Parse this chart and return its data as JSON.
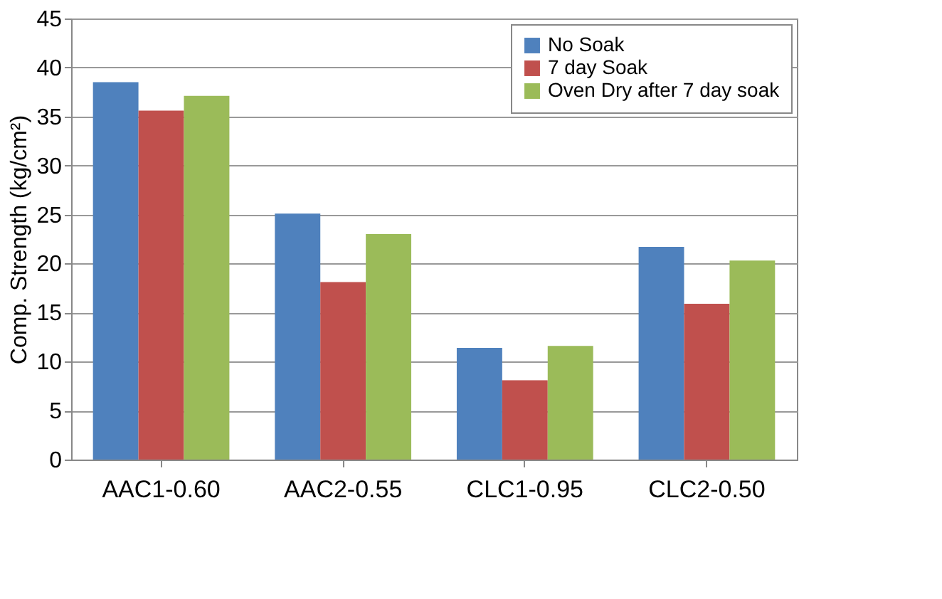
{
  "chart_data": {
    "type": "bar",
    "ylabel": "Comp. Strength (kg/cm²)",
    "categories": [
      "AAC1-0.60",
      "AAC2-0.55",
      "CLC1-0.95",
      "CLC2-0.50"
    ],
    "series": [
      {
        "name": "No Soak",
        "color": "#4f81bd",
        "values": [
          38.5,
          25.1,
          11.4,
          21.7
        ]
      },
      {
        "name": "7 day Soak",
        "color": "#c0504d",
        "values": [
          35.6,
          18.1,
          8.1,
          15.9
        ]
      },
      {
        "name": "Oven Dry after 7 day soak",
        "color": "#9bbb59",
        "values": [
          37.1,
          23.0,
          11.6,
          20.3
        ]
      }
    ],
    "ylim": [
      0,
      45
    ],
    "yticks": [
      0,
      5,
      10,
      15,
      20,
      25,
      30,
      35,
      40,
      45
    ],
    "grid": "y",
    "legend": "top right"
  }
}
